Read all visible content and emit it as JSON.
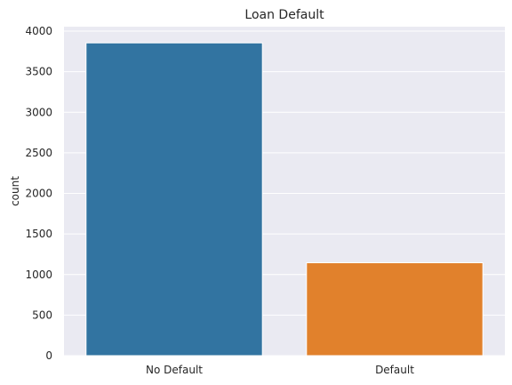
{
  "chart_data": {
    "type": "bar",
    "title": "Loan Default",
    "xlabel": "",
    "ylabel": "count",
    "categories": [
      "No Default",
      "Default"
    ],
    "values": [
      3855,
      1145
    ],
    "colors": [
      "#3274a1",
      "#e1812c"
    ],
    "ylim": [
      0,
      4000
    ],
    "yticks": [
      0,
      500,
      1000,
      1500,
      2000,
      2500,
      3000,
      3500,
      4000
    ],
    "grid": true,
    "background": "#eaeaf2",
    "legend": "none"
  }
}
